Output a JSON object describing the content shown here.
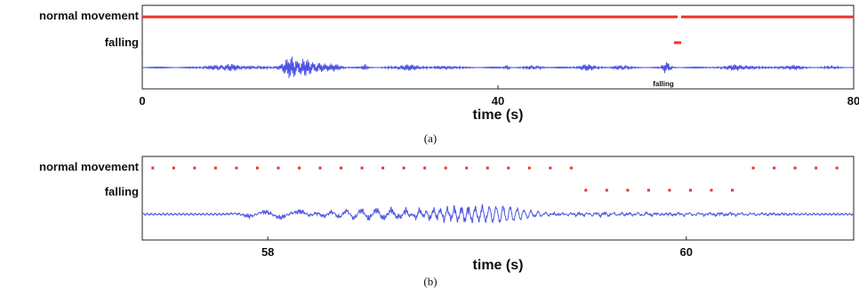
{
  "chart_data": [
    {
      "id": "a",
      "type": "line",
      "caption": "(a)",
      "xlabel": "time (s)",
      "xlim": [
        0,
        80
      ],
      "xticks": [
        0,
        40,
        80
      ],
      "row_labels": [
        "normal movement",
        "falling"
      ],
      "annotation": {
        "text": "falling",
        "x": 60
      },
      "colors": {
        "state": "#e8332e",
        "signal": "#4d55e0"
      },
      "normal_movement_segments": [
        [
          0,
          60.2
        ],
        [
          60.6,
          80
        ]
      ],
      "falling_segments": [
        [
          59.8,
          60.6
        ]
      ],
      "signal_bursts": [
        {
          "t": 9.5,
          "w": 2.2,
          "a": 0.35
        },
        {
          "t": 12.5,
          "w": 1.4,
          "a": 0.2
        },
        {
          "t": 17,
          "w": 1.4,
          "a": 1.0
        },
        {
          "t": 19,
          "w": 1.6,
          "a": 0.7
        },
        {
          "t": 21.5,
          "w": 1.2,
          "a": 0.3
        },
        {
          "t": 25,
          "w": 0.3,
          "a": 0.3
        },
        {
          "t": 30,
          "w": 2.0,
          "a": 0.28
        },
        {
          "t": 34,
          "w": 1.5,
          "a": 0.2
        },
        {
          "t": 41,
          "w": 0.3,
          "a": 0.3
        },
        {
          "t": 44,
          "w": 1.0,
          "a": 0.22
        },
        {
          "t": 50,
          "w": 1.3,
          "a": 0.3
        },
        {
          "t": 54,
          "w": 1.0,
          "a": 0.28
        },
        {
          "t": 59,
          "w": 0.5,
          "a": 0.75
        },
        {
          "t": 67,
          "w": 2.0,
          "a": 0.28
        },
        {
          "t": 73,
          "w": 1.6,
          "a": 0.22
        },
        {
          "t": 77.5,
          "w": 0.8,
          "a": 0.18
        }
      ]
    },
    {
      "id": "b",
      "type": "line",
      "caption": "(b)",
      "xlabel": "time (s)",
      "xlim": [
        57.4,
        60.8
      ],
      "xticks": [
        58,
        60
      ],
      "row_labels": [
        "normal movement",
        "falling"
      ],
      "colors": {
        "state": "#e8332e",
        "signal": "#4d55e0"
      },
      "normal_movement_points": [
        57.45,
        57.55,
        57.65,
        57.75,
        57.85,
        57.95,
        58.05,
        58.15,
        58.25,
        58.35,
        58.45,
        58.55,
        58.65,
        58.75,
        58.85,
        58.95,
        59.05,
        59.15,
        59.25,
        59.35,
        59.45,
        60.32,
        60.42,
        60.52,
        60.62,
        60.72
      ],
      "falling_points": [
        59.52,
        59.62,
        59.72,
        59.82,
        59.92,
        60.02,
        60.12,
        60.22
      ],
      "signal_bursts": [
        {
          "t": 57.95,
          "w": 0.1,
          "a": 0.3,
          "f": 6
        },
        {
          "t": 58.1,
          "w": 0.1,
          "a": 0.4,
          "f": 5
        },
        {
          "t": 58.5,
          "w": 0.25,
          "a": 0.55,
          "f": 14
        },
        {
          "t": 58.95,
          "w": 0.25,
          "a": 0.8,
          "f": 30
        },
        {
          "t": 59.15,
          "w": 0.12,
          "a": 0.5,
          "f": 30
        },
        {
          "t": 59.6,
          "w": 0.3,
          "a": 0.15,
          "f": 25
        },
        {
          "t": 60.1,
          "w": 0.4,
          "a": 0.12,
          "f": 20
        }
      ]
    }
  ]
}
